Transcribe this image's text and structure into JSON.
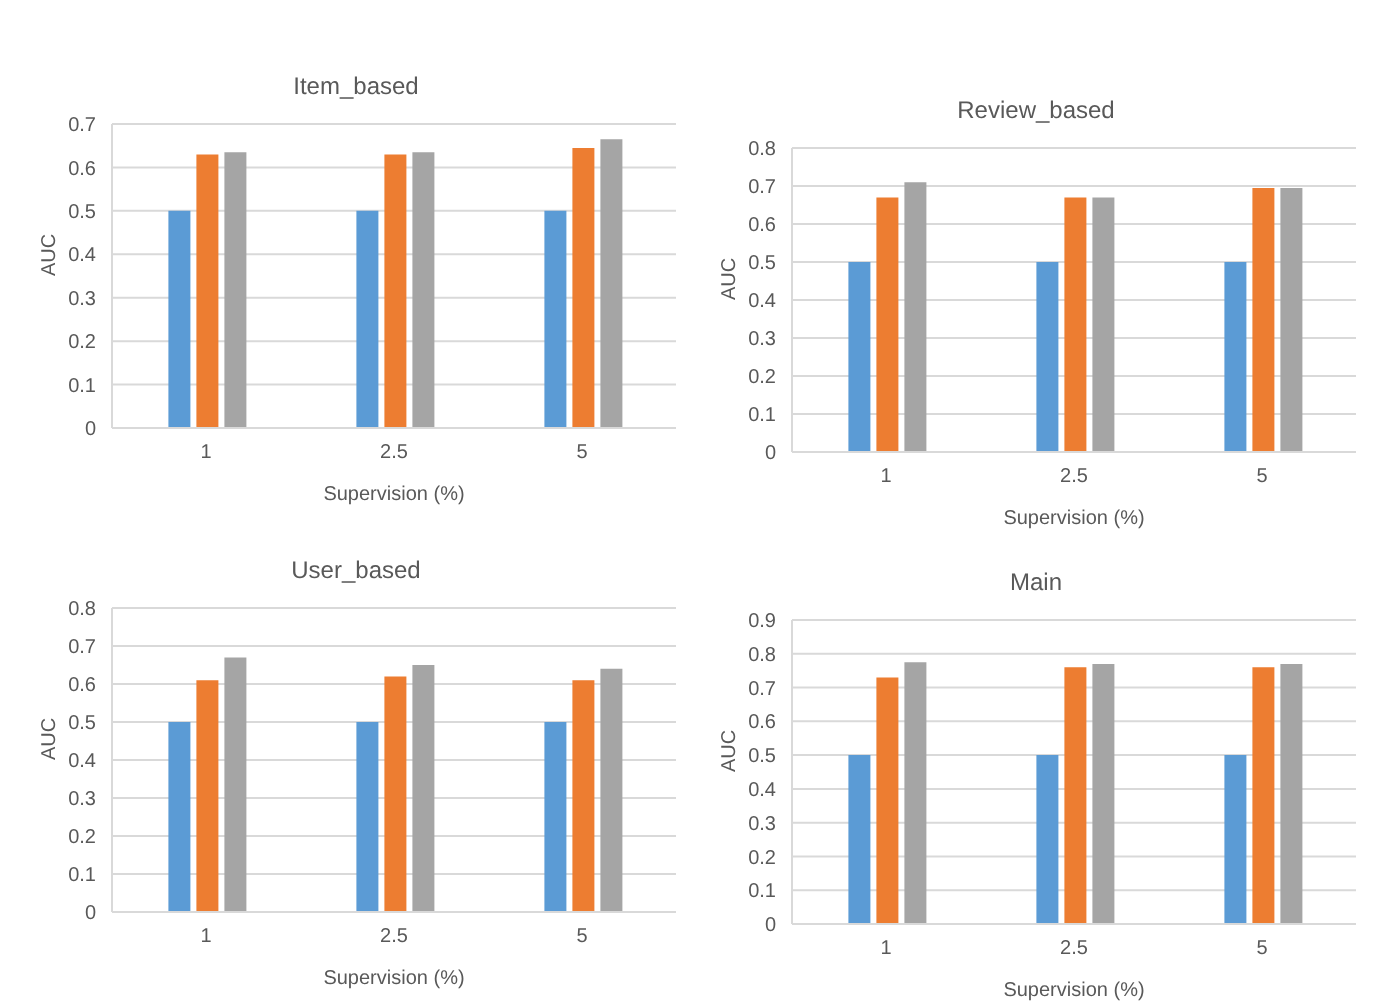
{
  "chart_data": [
    {
      "type": "bar",
      "title": "Item_based",
      "xlabel": "Supervision (%)",
      "ylabel": "AUC",
      "categories": [
        "1",
        "2.5",
        "5"
      ],
      "series": [
        {
          "color": "#5b9bd5",
          "values": [
            0.5,
            0.5,
            0.5
          ]
        },
        {
          "color": "#ed7d31",
          "values": [
            0.63,
            0.63,
            0.645
          ]
        },
        {
          "color": "#a5a5a5",
          "values": [
            0.635,
            0.635,
            0.665
          ]
        }
      ],
      "ylim": [
        0,
        0.7
      ],
      "yticks": [
        0,
        0.1,
        0.2,
        0.3,
        0.4,
        0.5,
        0.6,
        0.7
      ],
      "grid": "y",
      "legend": false
    },
    {
      "type": "bar",
      "title": "Review_based",
      "xlabel": "Supervision (%)",
      "ylabel": "AUC",
      "categories": [
        "1",
        "2.5",
        "5"
      ],
      "series": [
        {
          "color": "#5b9bd5",
          "values": [
            0.5,
            0.5,
            0.5
          ]
        },
        {
          "color": "#ed7d31",
          "values": [
            0.67,
            0.67,
            0.695
          ]
        },
        {
          "color": "#a5a5a5",
          "values": [
            0.71,
            0.67,
            0.695
          ]
        }
      ],
      "ylim": [
        0,
        0.8
      ],
      "yticks": [
        0,
        0.1,
        0.2,
        0.3,
        0.4,
        0.5,
        0.6,
        0.7,
        0.8
      ],
      "grid": "y",
      "legend": false
    },
    {
      "type": "bar",
      "title": "User_based",
      "xlabel": "Supervision (%)",
      "ylabel": "AUC",
      "categories": [
        "1",
        "2.5",
        "5"
      ],
      "series": [
        {
          "color": "#5b9bd5",
          "values": [
            0.5,
            0.5,
            0.5
          ]
        },
        {
          "color": "#ed7d31",
          "values": [
            0.61,
            0.62,
            0.61
          ]
        },
        {
          "color": "#a5a5a5",
          "values": [
            0.67,
            0.65,
            0.64
          ]
        }
      ],
      "ylim": [
        0,
        0.8
      ],
      "yticks": [
        0,
        0.1,
        0.2,
        0.3,
        0.4,
        0.5,
        0.6,
        0.7,
        0.8
      ],
      "grid": "y",
      "legend": false
    },
    {
      "type": "bar",
      "title": "Main",
      "xlabel": "Supervision (%)",
      "ylabel": "AUC",
      "categories": [
        "1",
        "2.5",
        "5"
      ],
      "series": [
        {
          "color": "#5b9bd5",
          "values": [
            0.5,
            0.5,
            0.5
          ]
        },
        {
          "color": "#ed7d31",
          "values": [
            0.73,
            0.76,
            0.76
          ]
        },
        {
          "color": "#a5a5a5",
          "values": [
            0.775,
            0.77,
            0.77
          ]
        }
      ],
      "ylim": [
        0,
        0.9
      ],
      "yticks": [
        0,
        0.1,
        0.2,
        0.3,
        0.4,
        0.5,
        0.6,
        0.7,
        0.8,
        0.9
      ],
      "grid": "y",
      "legend": false
    }
  ]
}
